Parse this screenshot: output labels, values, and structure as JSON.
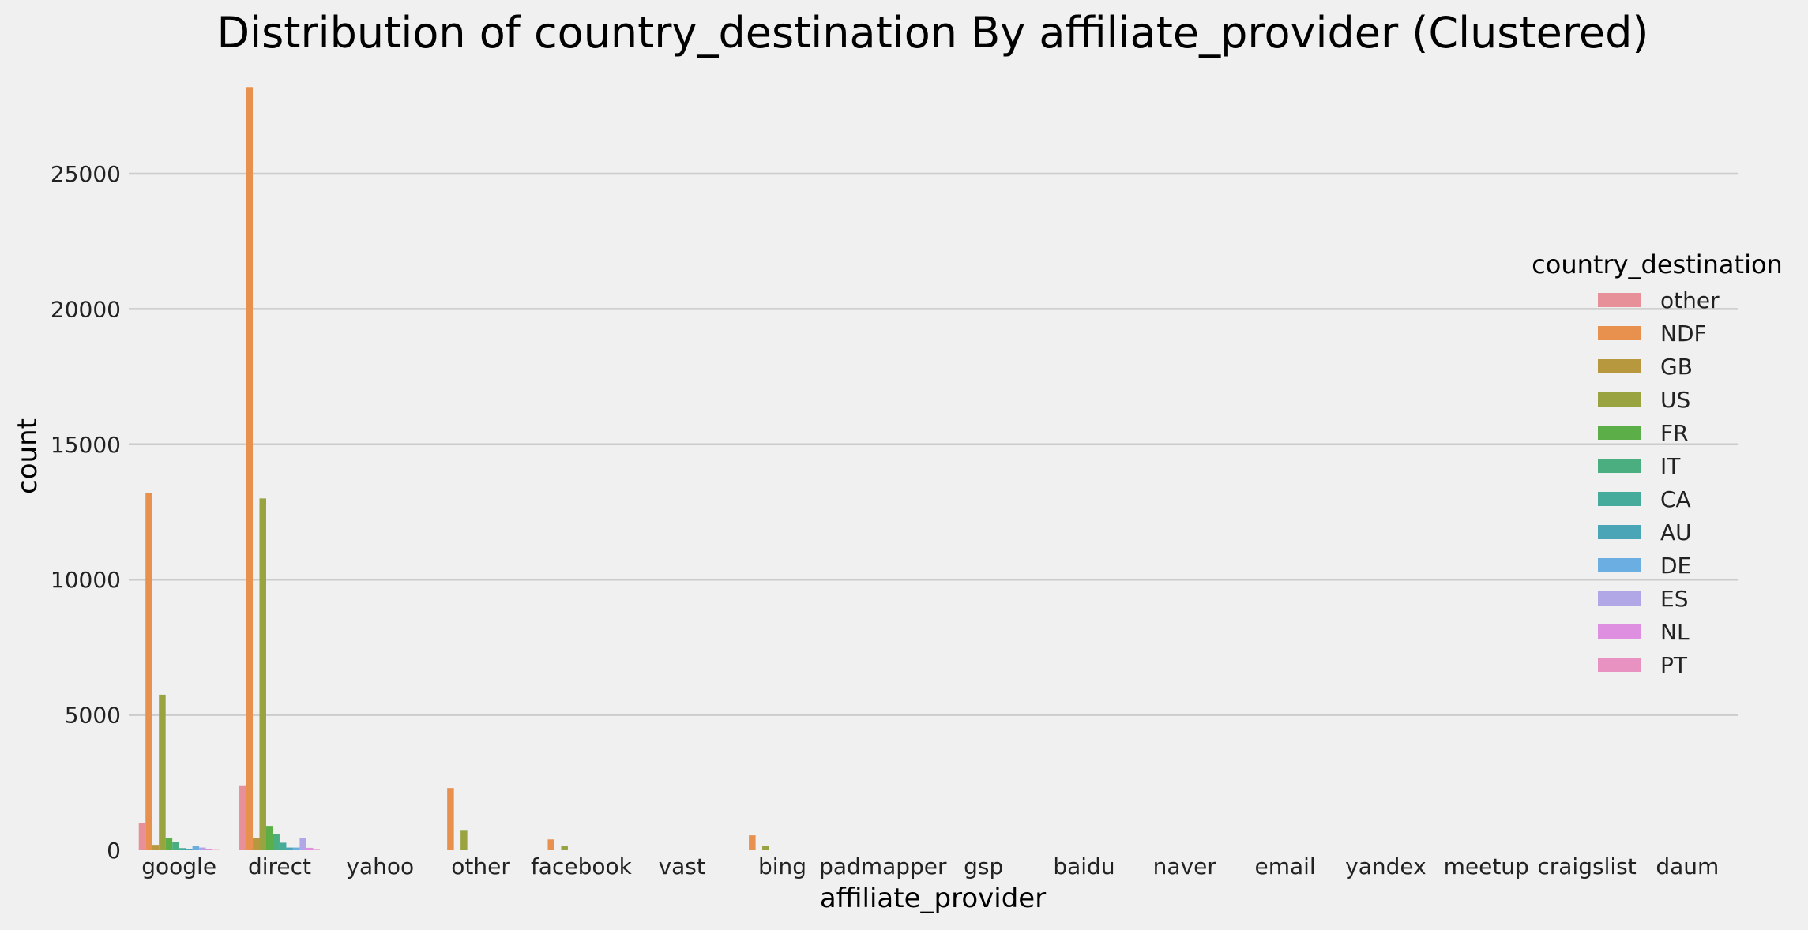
{
  "chart_data": {
    "type": "bar",
    "title": "Distribution of country_destination By affiliate_provider (Clustered)",
    "xlabel": "affiliate_provider",
    "ylabel": "count",
    "ylim": [
      0,
      28500
    ],
    "yticks": [
      0,
      5000,
      10000,
      15000,
      20000,
      25000
    ],
    "grid": true,
    "legend_position": "right",
    "legend_title": "country_destination",
    "categories": [
      "google",
      "direct",
      "yahoo",
      "other",
      "facebook",
      "vast",
      "bing",
      "padmapper",
      "gsp",
      "baidu",
      "naver",
      "email",
      "yandex",
      "meetup",
      "craigslist",
      "daum"
    ],
    "series": [
      {
        "name": "other",
        "color": "#e8909a",
        "values": [
          1000,
          2400,
          0,
          0,
          0,
          0,
          0,
          0,
          0,
          0,
          0,
          0,
          0,
          0,
          0,
          0
        ]
      },
      {
        "name": "NDF",
        "color": "#e8904e",
        "values": [
          13200,
          28200,
          0,
          2300,
          400,
          0,
          550,
          0,
          0,
          0,
          0,
          0,
          0,
          0,
          0,
          0
        ]
      },
      {
        "name": "GB",
        "color": "#b8983e",
        "values": [
          200,
          450,
          0,
          0,
          0,
          0,
          0,
          0,
          0,
          0,
          0,
          0,
          0,
          0,
          0,
          0
        ]
      },
      {
        "name": "US",
        "color": "#99a340",
        "values": [
          5750,
          13000,
          0,
          750,
          150,
          0,
          150,
          0,
          0,
          0,
          0,
          0,
          0,
          0,
          0,
          0
        ]
      },
      {
        "name": "FR",
        "color": "#5bae48",
        "values": [
          450,
          900,
          0,
          0,
          0,
          0,
          0,
          0,
          0,
          0,
          0,
          0,
          0,
          0,
          0,
          0
        ]
      },
      {
        "name": "IT",
        "color": "#4aae80",
        "values": [
          300,
          600,
          0,
          0,
          0,
          0,
          0,
          0,
          0,
          0,
          0,
          0,
          0,
          0,
          0,
          0
        ]
      },
      {
        "name": "CA",
        "color": "#47ab9c",
        "values": [
          80,
          280,
          0,
          0,
          0,
          0,
          0,
          0,
          0,
          0,
          0,
          0,
          0,
          0,
          0,
          0
        ]
      },
      {
        "name": "AU",
        "color": "#4aa6b6",
        "values": [
          40,
          100,
          0,
          0,
          0,
          0,
          0,
          0,
          0,
          0,
          0,
          0,
          0,
          0,
          0,
          0
        ]
      },
      {
        "name": "DE",
        "color": "#6aaee2",
        "values": [
          150,
          100,
          0,
          0,
          0,
          0,
          0,
          0,
          0,
          0,
          0,
          0,
          0,
          0,
          0,
          0
        ]
      },
      {
        "name": "ES",
        "color": "#b1a6e6",
        "values": [
          100,
          450,
          0,
          0,
          0,
          0,
          0,
          0,
          0,
          0,
          0,
          0,
          0,
          0,
          0,
          0
        ]
      },
      {
        "name": "NL",
        "color": "#df8fe0",
        "values": [
          40,
          90,
          0,
          0,
          0,
          0,
          0,
          0,
          0,
          0,
          0,
          0,
          0,
          0,
          0,
          0
        ]
      },
      {
        "name": "PT",
        "color": "#e792c0",
        "values": [
          10,
          20,
          0,
          0,
          0,
          0,
          0,
          0,
          0,
          0,
          0,
          0,
          0,
          0,
          0,
          0
        ]
      }
    ]
  }
}
